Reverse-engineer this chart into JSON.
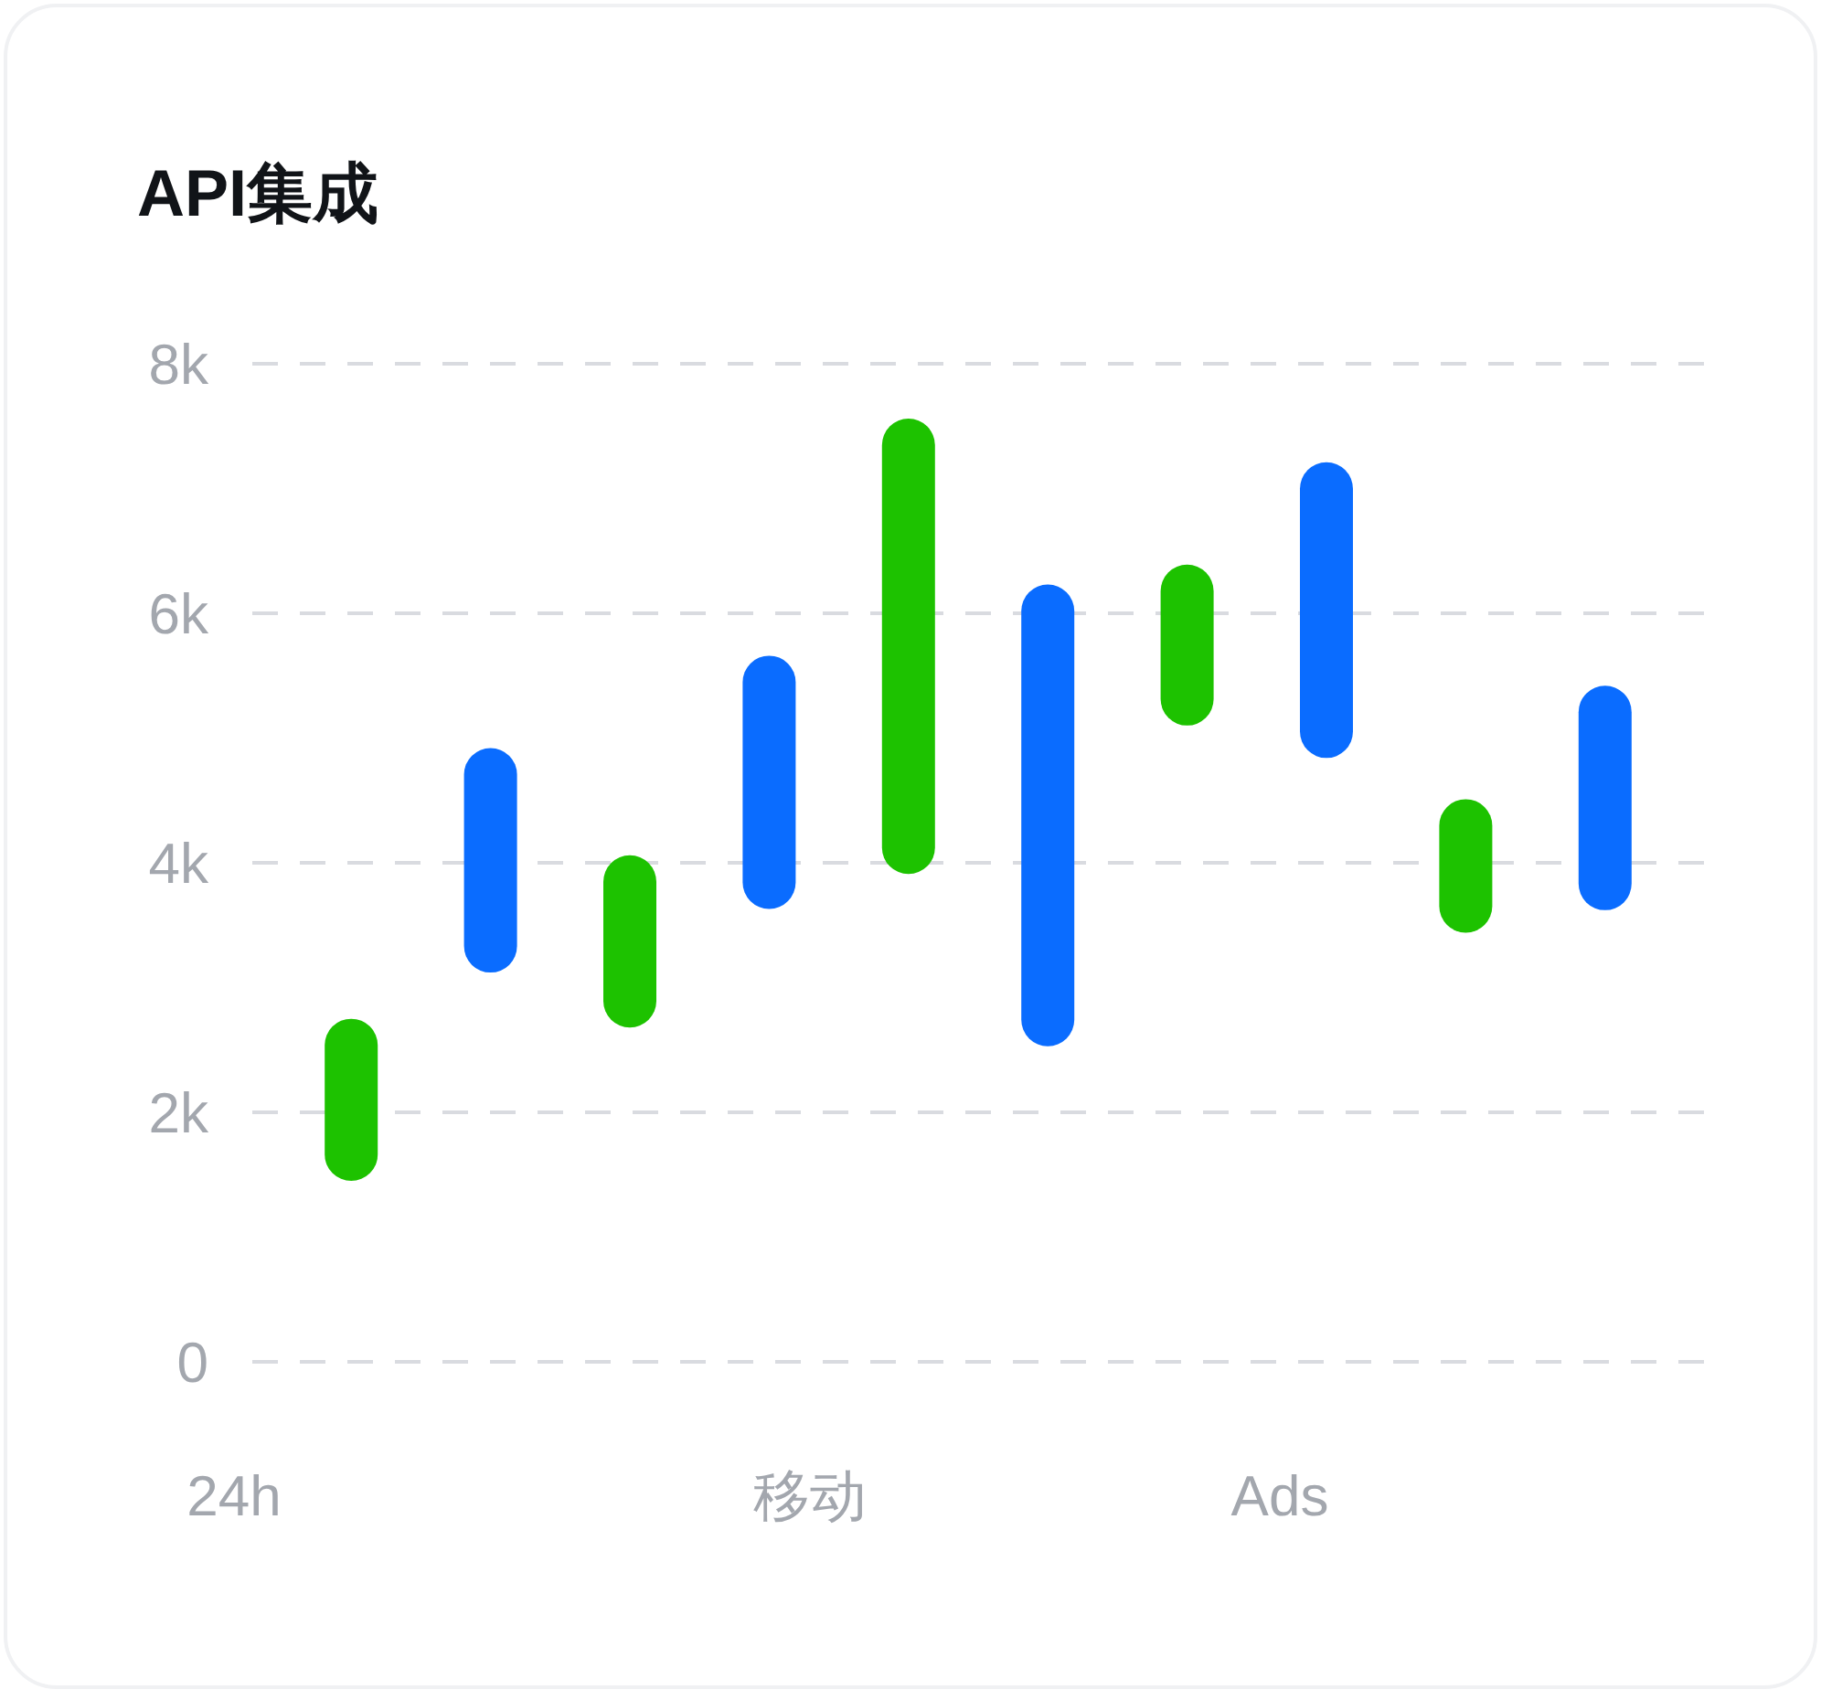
{
  "chart_data": {
    "type": "bar",
    "title": "API集成",
    "categories": [
      null,
      null,
      null,
      null,
      null,
      null,
      null,
      null,
      null,
      null
    ],
    "base": [
      1450,
      3120,
      2680,
      3630,
      3910,
      2530,
      5100,
      4840,
      3440,
      3620
    ],
    "values": [
      1300,
      1800,
      1380,
      2030,
      3650,
      3700,
      1290,
      2370,
      1070,
      1800
    ],
    "colors": [
      "#1dc200",
      "#0a6cff",
      "#1dc200",
      "#0a6cff",
      "#1dc200",
      "#0a6cff",
      "#1dc200",
      "#0a6cff",
      "#1dc200",
      "#0a6cff"
    ],
    "ylim": [
      0,
      8000
    ],
    "yticks": [
      0,
      {
        "value": 2000,
        "label": "2k"
      },
      {
        "value": 4000,
        "label": "4k"
      },
      {
        "value": 6000,
        "label": "6k"
      },
      {
        "value": 8000,
        "label": "8k"
      }
    ],
    "grid": "y",
    "line_style": "dashed",
    "tick_labels": "y",
    "annotations": [
      "24h",
      "移动",
      "Ads"
    ]
  }
}
